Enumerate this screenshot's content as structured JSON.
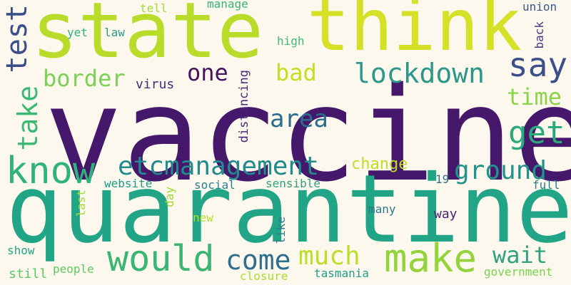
{
  "words": [
    {
      "text": "vaccine",
      "color": "#45186b"
    },
    {
      "text": "quarantine",
      "color": "#21a586"
    },
    {
      "text": "state",
      "color": "#b9dc2a"
    },
    {
      "text": "think",
      "color": "#d4e127"
    },
    {
      "text": "know",
      "color": "#2fb37b"
    },
    {
      "text": "make",
      "color": "#93d33b"
    },
    {
      "text": "would",
      "color": "#3ab572"
    },
    {
      "text": "test",
      "color": "#3a4f8a"
    },
    {
      "text": "say",
      "color": "#3b4f8a"
    },
    {
      "text": "get",
      "color": "#2aa97c"
    },
    {
      "text": "etcmanagement",
      "color": "#228b8d"
    },
    {
      "text": "lockdown",
      "color": "#2c978a"
    },
    {
      "text": "border",
      "color": "#7cd054"
    },
    {
      "text": "area",
      "color": "#2a6e8e"
    },
    {
      "text": "take",
      "color": "#3cb774"
    },
    {
      "text": "ground",
      "color": "#22938a"
    },
    {
      "text": "much",
      "color": "#bbde2b"
    },
    {
      "text": "come",
      "color": "#2e6f8e"
    },
    {
      "text": "wait",
      "color": "#31a17e"
    },
    {
      "text": "bad",
      "color": "#c2df23"
    },
    {
      "text": "one",
      "color": "#46135f"
    },
    {
      "text": "time",
      "color": "#8ad447"
    },
    {
      "text": "change",
      "color": "#bddf26"
    },
    {
      "text": "virus",
      "color": "#3f2d78"
    },
    {
      "text": "website",
      "color": "#1f9a8a"
    },
    {
      "text": "social",
      "color": "#2a7f8e"
    },
    {
      "text": "sensible",
      "color": "#2ea07f"
    },
    {
      "text": "many",
      "color": "#2b788e"
    },
    {
      "text": "way",
      "color": "#482677"
    },
    {
      "text": "full",
      "color": "#287c8e"
    },
    {
      "text": "19",
      "color": "#2d6e8e"
    },
    {
      "text": "new",
      "color": "#b5de2b"
    },
    {
      "text": "show",
      "color": "#24a584"
    },
    {
      "text": "people",
      "color": "#5ec962"
    },
    {
      "text": "still",
      "color": "#59c864"
    },
    {
      "text": "closure",
      "color": "#a8db34"
    },
    {
      "text": "tasmania",
      "color": "#1f9e89"
    },
    {
      "text": "government",
      "color": "#7ad151"
    },
    {
      "text": "tell",
      "color": "#a0da39"
    },
    {
      "text": "manage",
      "color": "#36b677"
    },
    {
      "text": "union",
      "color": "#39568c"
    },
    {
      "text": "yet",
      "color": "#2db27d"
    },
    {
      "text": "law",
      "color": "#2a9a86"
    },
    {
      "text": "high",
      "color": "#3bbb75"
    },
    {
      "text": "back",
      "color": "#443a83"
    },
    {
      "text": "distancing",
      "color": "#482878"
    },
    {
      "text": "day",
      "color": "#a2da37"
    },
    {
      "text": "last",
      "color": "#a5db36"
    },
    {
      "text": "like",
      "color": "#2b7c8e"
    }
  ]
}
